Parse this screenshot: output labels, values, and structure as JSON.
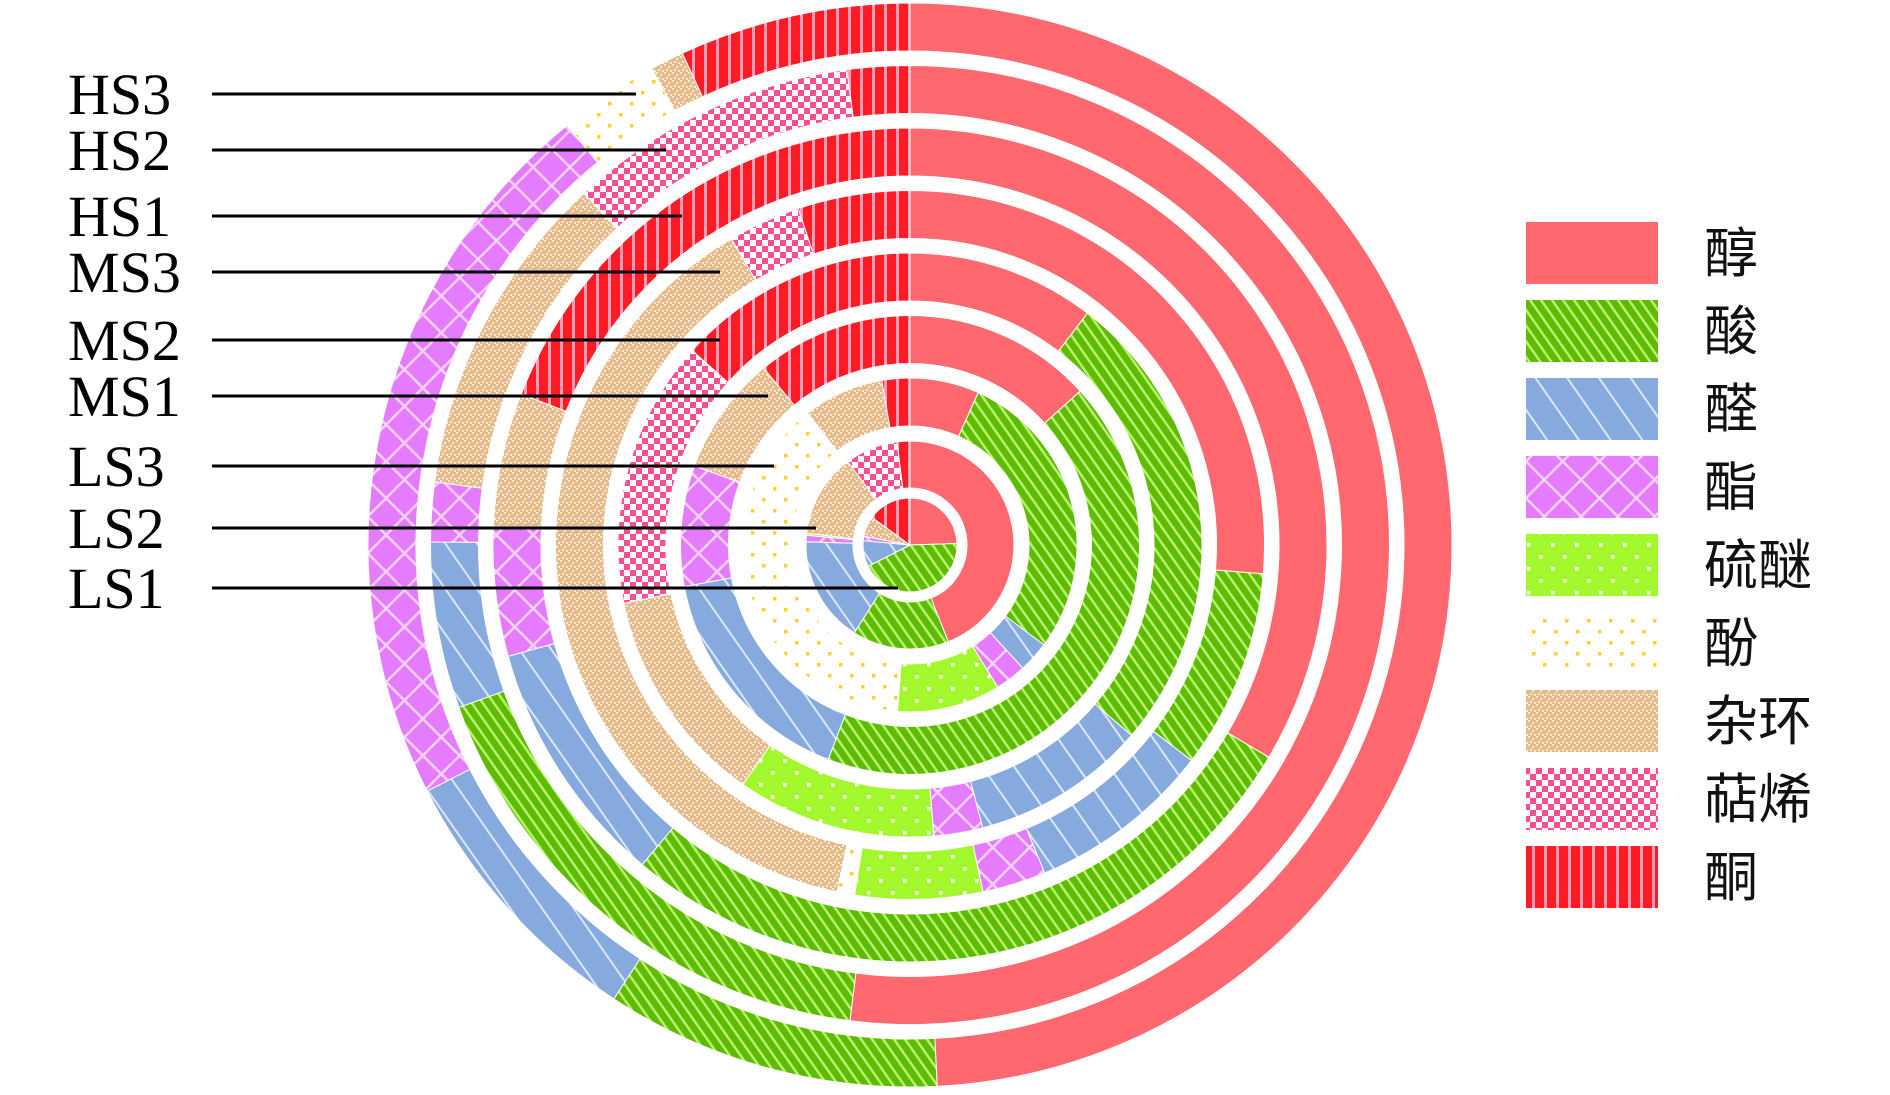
{
  "chart_data": {
    "type": "multi-ring-donut",
    "title": "",
    "start_angle": "top, clockwise",
    "unit": "percent",
    "categories": [
      "醇",
      "酸",
      "醛",
      "酯",
      "硫醚",
      "酚",
      "杂环",
      "萜烯",
      "酮"
    ],
    "category_colors": [
      "#FF686E",
      "#5DBB00",
      "#86A9DE",
      "#E57BFF",
      "#A2F82C",
      "#FFD02E",
      "#E7BA8A",
      "#FF4F93",
      "#FF1B26"
    ],
    "legend_position": "right",
    "series": [
      {
        "name": "LS1",
        "values": [
          24.5,
          43.0,
          9.0,
          1.5,
          0.0,
          0.0,
          7.0,
          0.0,
          15.0
        ]
      },
      {
        "name": "LS2",
        "values": [
          44.0,
          15.0,
          16.5,
          1.0,
          0.3,
          0.0,
          13.0,
          8.2,
          2.0
        ]
      },
      {
        "name": "LS3",
        "values": [
          6.7,
          28.5,
          3.0,
          3.0,
          10.0,
          38.3,
          7.8,
          0.0,
          2.7
        ]
      },
      {
        "name": "MS1",
        "values": [
          13.3,
          42.5,
          16.3,
          8.5,
          0.0,
          0.0,
          8.4,
          0.0,
          11.0
        ]
      },
      {
        "name": "MS2",
        "values": [
          10.4,
          25.9,
          9.7,
          2.7,
          11.0,
          0.0,
          12.1,
          14.8,
          13.4
        ]
      },
      {
        "name": "MS3",
        "values": [
          26.3,
          9.1,
          8.4,
          2.9,
          5.8,
          0.8,
          38.3,
          3.3,
          5.1
        ]
      },
      {
        "name": "HS1",
        "values": [
          33.5,
          27.6,
          9.6,
          5.0,
          0.0,
          0.0,
          5.2,
          0.0,
          19.1
        ]
      },
      {
        "name": "HS2",
        "values": [
          52.0,
          17.5,
          5.6,
          2.0,
          0.0,
          0.0,
          11.0,
          9.8,
          2.1
        ]
      },
      {
        "name": "HS3",
        "values": [
          49.2,
          10.0,
          8.3,
          21.6,
          0.0,
          3.0,
          1.0,
          0.0,
          6.9
        ]
      }
    ]
  }
}
